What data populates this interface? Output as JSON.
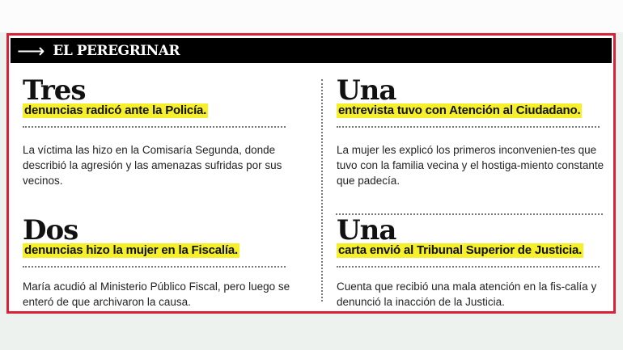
{
  "header": {
    "icon": "arrow-right-icon",
    "title": "EL PEREGRINAR"
  },
  "accent_colors": {
    "border": "#d9213a",
    "highlight": "#f6f02a",
    "header_bg": "#000000"
  },
  "items": [
    {
      "number": "Tres",
      "headline": "denuncias radicó ante la Policía.",
      "text": "La víctima las hizo en la Comisaría Segunda, donde describió la agresión y las amenazas sufridas por sus vecinos."
    },
    {
      "number": "Una",
      "headline": "entrevista tuvo con Atención al Ciudadano.",
      "text": "La mujer les explicó los primeros inconvenien-tes que tuvo con la familia vecina y el hostiga-miento constante que padecía."
    },
    {
      "number": "Dos",
      "headline": "denuncias hizo la mujer en la Fiscalía.",
      "text": "María acudió al Ministerio Público Fiscal, pero luego se enteró de que archivaron la causa."
    },
    {
      "number": "Una",
      "headline": "carta envió al Tribunal Superior de Justicia.",
      "text": "Cuenta que recibió una mala atención en la fis-calía y denunció la inacción de la Justicia."
    }
  ]
}
